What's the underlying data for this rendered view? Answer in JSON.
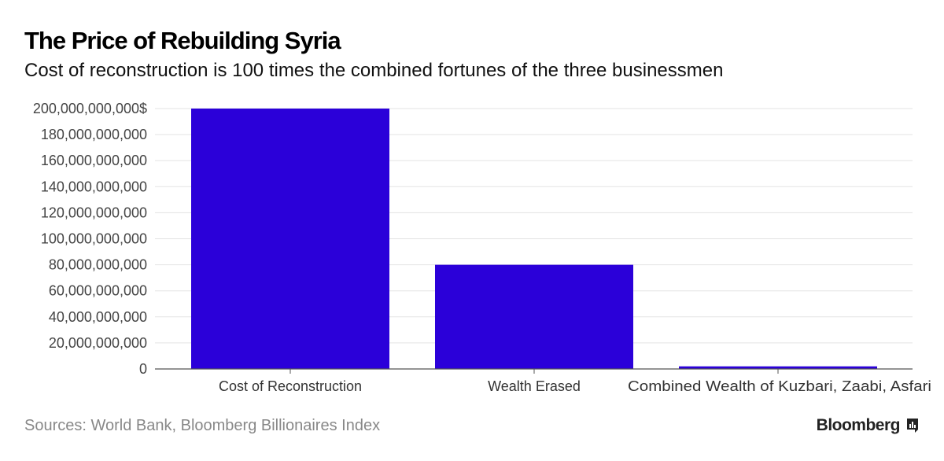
{
  "header": {
    "title": "The Price of Rebuilding Syria",
    "subtitle": "Cost of reconstruction is 100 times the combined fortunes of the three businessmen"
  },
  "footer": {
    "source": "Sources: World Bank, Bloomberg Billionaires Index",
    "brand": "Bloomberg",
    "brand_icon": "bar-chart-icon"
  },
  "chart_data": {
    "type": "bar",
    "categories": [
      "Cost of Reconstruction",
      "Wealth Erased",
      "Combined Wealth of Kuzbari, Zaabi, Asfari"
    ],
    "values": [
      200000000000,
      80000000000,
      2000000000
    ],
    "ylim": [
      0,
      200000000000
    ],
    "yticks": [
      0,
      20000000000,
      40000000000,
      60000000000,
      80000000000,
      100000000000,
      120000000000,
      140000000000,
      160000000000,
      180000000000,
      200000000000
    ],
    "ytick_labels": [
      "0",
      "20,000,000,000",
      "40,000,000,000",
      "60,000,000,000",
      "80,000,000,000",
      "100,000,000,000",
      "120,000,000,000",
      "140,000,000,000",
      "160,000,000,000",
      "180,000,000,000",
      "200,000,000,000$"
    ],
    "bar_color": "#2b00d9",
    "grid": true,
    "xlabel": "",
    "ylabel": ""
  }
}
